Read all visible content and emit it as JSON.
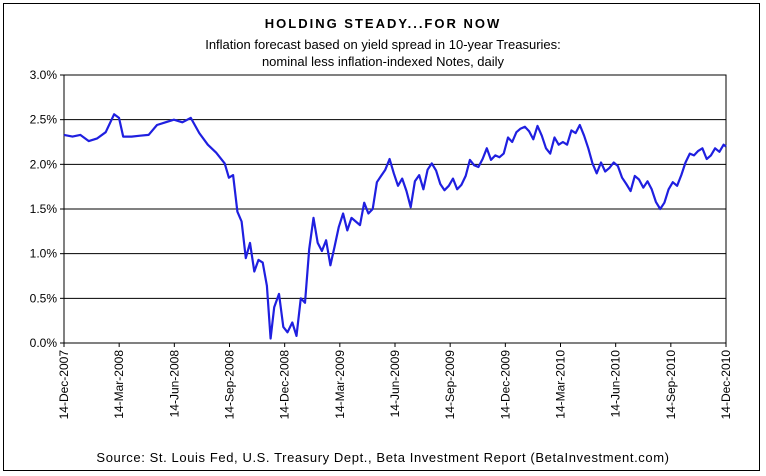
{
  "chart_data": {
    "type": "line",
    "title": "HOLDING STEADY...FOR NOW",
    "subtitle": [
      "Inflation forecast based on yield spread in 10-year Treasuries:",
      "nominal less inflation-indexed Notes, daily"
    ],
    "source": "Source: St. Louis Fed, U.S. Treasury Dept., Beta Investment Report (BetaInvestment.com)",
    "xlabel": "",
    "ylabel": "",
    "ylim": [
      0,
      3.0
    ],
    "y_ticks": [
      0,
      0.5,
      1.0,
      1.5,
      2.0,
      2.5,
      3.0
    ],
    "y_tick_labels": [
      "0.0%",
      "0.5%",
      "1.0%",
      "1.5%",
      "2.0%",
      "2.5%",
      "3.0%"
    ],
    "x_tick_labels": [
      "14-Dec-2007",
      "14-Mar-2008",
      "14-Jun-2008",
      "14-Sep-2008",
      "14-Dec-2008",
      "14-Mar-2009",
      "14-Jun-2009",
      "14-Sep-2009",
      "14-Dec-2009",
      "14-Mar-2010",
      "14-Jun-2010",
      "14-Sep-2010",
      "14-Dec-2010"
    ],
    "gridlines": "horizontal",
    "line_color": "#1f1fe0",
    "series": [
      {
        "values": [
          [
            "2007-12-14",
            2.33
          ],
          [
            "2007-12-28",
            2.31
          ],
          [
            "2008-01-10",
            2.33
          ],
          [
            "2008-01-24",
            2.26
          ],
          [
            "2008-02-07",
            2.29
          ],
          [
            "2008-02-21",
            2.36
          ],
          [
            "2008-03-06",
            2.56
          ],
          [
            "2008-03-14",
            2.52
          ],
          [
            "2008-03-21",
            2.31
          ],
          [
            "2008-04-04",
            2.31
          ],
          [
            "2008-04-18",
            2.32
          ],
          [
            "2008-05-02",
            2.33
          ],
          [
            "2008-05-16",
            2.44
          ],
          [
            "2008-05-30",
            2.47
          ],
          [
            "2008-06-13",
            2.5
          ],
          [
            "2008-06-27",
            2.47
          ],
          [
            "2008-07-11",
            2.52
          ],
          [
            "2008-07-25",
            2.35
          ],
          [
            "2008-08-08",
            2.22
          ],
          [
            "2008-08-22",
            2.13
          ],
          [
            "2008-09-05",
            2.01
          ],
          [
            "2008-09-12",
            1.85
          ],
          [
            "2008-09-19",
            1.88
          ],
          [
            "2008-09-26",
            1.47
          ],
          [
            "2008-10-03",
            1.36
          ],
          [
            "2008-10-10",
            0.95
          ],
          [
            "2008-10-17",
            1.12
          ],
          [
            "2008-10-24",
            0.8
          ],
          [
            "2008-10-31",
            0.93
          ],
          [
            "2008-11-07",
            0.9
          ],
          [
            "2008-11-14",
            0.64
          ],
          [
            "2008-11-20",
            0.05
          ],
          [
            "2008-11-26",
            0.4
          ],
          [
            "2008-12-04",
            0.55
          ],
          [
            "2008-12-11",
            0.18
          ],
          [
            "2008-12-18",
            0.12
          ],
          [
            "2008-12-26",
            0.23
          ],
          [
            "2009-01-02",
            0.08
          ],
          [
            "2009-01-09",
            0.5
          ],
          [
            "2009-01-16",
            0.45
          ],
          [
            "2009-01-23",
            1.05
          ],
          [
            "2009-01-30",
            1.4
          ],
          [
            "2009-02-06",
            1.12
          ],
          [
            "2009-02-13",
            1.03
          ],
          [
            "2009-02-20",
            1.15
          ],
          [
            "2009-02-27",
            0.87
          ],
          [
            "2009-03-06",
            1.08
          ],
          [
            "2009-03-13",
            1.3
          ],
          [
            "2009-03-20",
            1.45
          ],
          [
            "2009-03-27",
            1.26
          ],
          [
            "2009-04-03",
            1.4
          ],
          [
            "2009-04-17",
            1.32
          ],
          [
            "2009-04-24",
            1.57
          ],
          [
            "2009-05-01",
            1.45
          ],
          [
            "2009-05-08",
            1.5
          ],
          [
            "2009-05-15",
            1.8
          ],
          [
            "2009-05-22",
            1.87
          ],
          [
            "2009-05-29",
            1.94
          ],
          [
            "2009-06-05",
            2.06
          ],
          [
            "2009-06-12",
            1.9
          ],
          [
            "2009-06-19",
            1.76
          ],
          [
            "2009-06-26",
            1.84
          ],
          [
            "2009-07-03",
            1.7
          ],
          [
            "2009-07-10",
            1.52
          ],
          [
            "2009-07-17",
            1.81
          ],
          [
            "2009-07-24",
            1.88
          ],
          [
            "2009-07-31",
            1.72
          ],
          [
            "2009-08-07",
            1.94
          ],
          [
            "2009-08-14",
            2.01
          ],
          [
            "2009-08-21",
            1.93
          ],
          [
            "2009-08-28",
            1.78
          ],
          [
            "2009-09-04",
            1.71
          ],
          [
            "2009-09-11",
            1.76
          ],
          [
            "2009-09-18",
            1.84
          ],
          [
            "2009-09-25",
            1.72
          ],
          [
            "2009-10-02",
            1.77
          ],
          [
            "2009-10-09",
            1.87
          ],
          [
            "2009-10-16",
            2.05
          ],
          [
            "2009-10-23",
            1.99
          ],
          [
            "2009-10-30",
            1.97
          ],
          [
            "2009-11-06",
            2.06
          ],
          [
            "2009-11-13",
            2.18
          ],
          [
            "2009-11-20",
            2.05
          ],
          [
            "2009-11-27",
            2.1
          ],
          [
            "2009-12-04",
            2.08
          ],
          [
            "2009-12-11",
            2.12
          ],
          [
            "2009-12-18",
            2.3
          ],
          [
            "2009-12-25",
            2.25
          ],
          [
            "2010-01-01",
            2.36
          ],
          [
            "2010-01-08",
            2.4
          ],
          [
            "2010-01-15",
            2.42
          ],
          [
            "2010-01-22",
            2.37
          ],
          [
            "2010-01-29",
            2.28
          ],
          [
            "2010-02-05",
            2.43
          ],
          [
            "2010-02-12",
            2.32
          ],
          [
            "2010-02-19",
            2.18
          ],
          [
            "2010-02-26",
            2.12
          ],
          [
            "2010-03-05",
            2.3
          ],
          [
            "2010-03-12",
            2.22
          ],
          [
            "2010-03-19",
            2.25
          ],
          [
            "2010-03-26",
            2.22
          ],
          [
            "2010-04-02",
            2.38
          ],
          [
            "2010-04-09",
            2.35
          ],
          [
            "2010-04-16",
            2.44
          ],
          [
            "2010-04-23",
            2.32
          ],
          [
            "2010-04-30",
            2.18
          ],
          [
            "2010-05-07",
            2.01
          ],
          [
            "2010-05-14",
            1.9
          ],
          [
            "2010-05-21",
            2.02
          ],
          [
            "2010-05-28",
            1.92
          ],
          [
            "2010-06-04",
            1.96
          ],
          [
            "2010-06-11",
            2.02
          ],
          [
            "2010-06-18",
            1.98
          ],
          [
            "2010-06-25",
            1.85
          ],
          [
            "2010-07-02",
            1.78
          ],
          [
            "2010-07-09",
            1.7
          ],
          [
            "2010-07-16",
            1.87
          ],
          [
            "2010-07-23",
            1.83
          ],
          [
            "2010-07-30",
            1.74
          ],
          [
            "2010-08-06",
            1.81
          ],
          [
            "2010-08-13",
            1.72
          ],
          [
            "2010-08-20",
            1.58
          ],
          [
            "2010-08-27",
            1.5
          ],
          [
            "2010-09-03",
            1.57
          ],
          [
            "2010-09-10",
            1.72
          ],
          [
            "2010-09-17",
            1.8
          ],
          [
            "2010-09-24",
            1.76
          ],
          [
            "2010-10-01",
            1.88
          ],
          [
            "2010-10-08",
            2.02
          ],
          [
            "2010-10-15",
            2.12
          ],
          [
            "2010-10-22",
            2.1
          ],
          [
            "2010-10-29",
            2.15
          ],
          [
            "2010-11-05",
            2.18
          ],
          [
            "2010-11-12",
            2.06
          ],
          [
            "2010-11-19",
            2.1
          ],
          [
            "2010-11-26",
            2.18
          ],
          [
            "2010-12-03",
            2.14
          ],
          [
            "2010-12-10",
            2.22
          ],
          [
            "2010-12-14",
            2.2
          ]
        ]
      }
    ]
  }
}
